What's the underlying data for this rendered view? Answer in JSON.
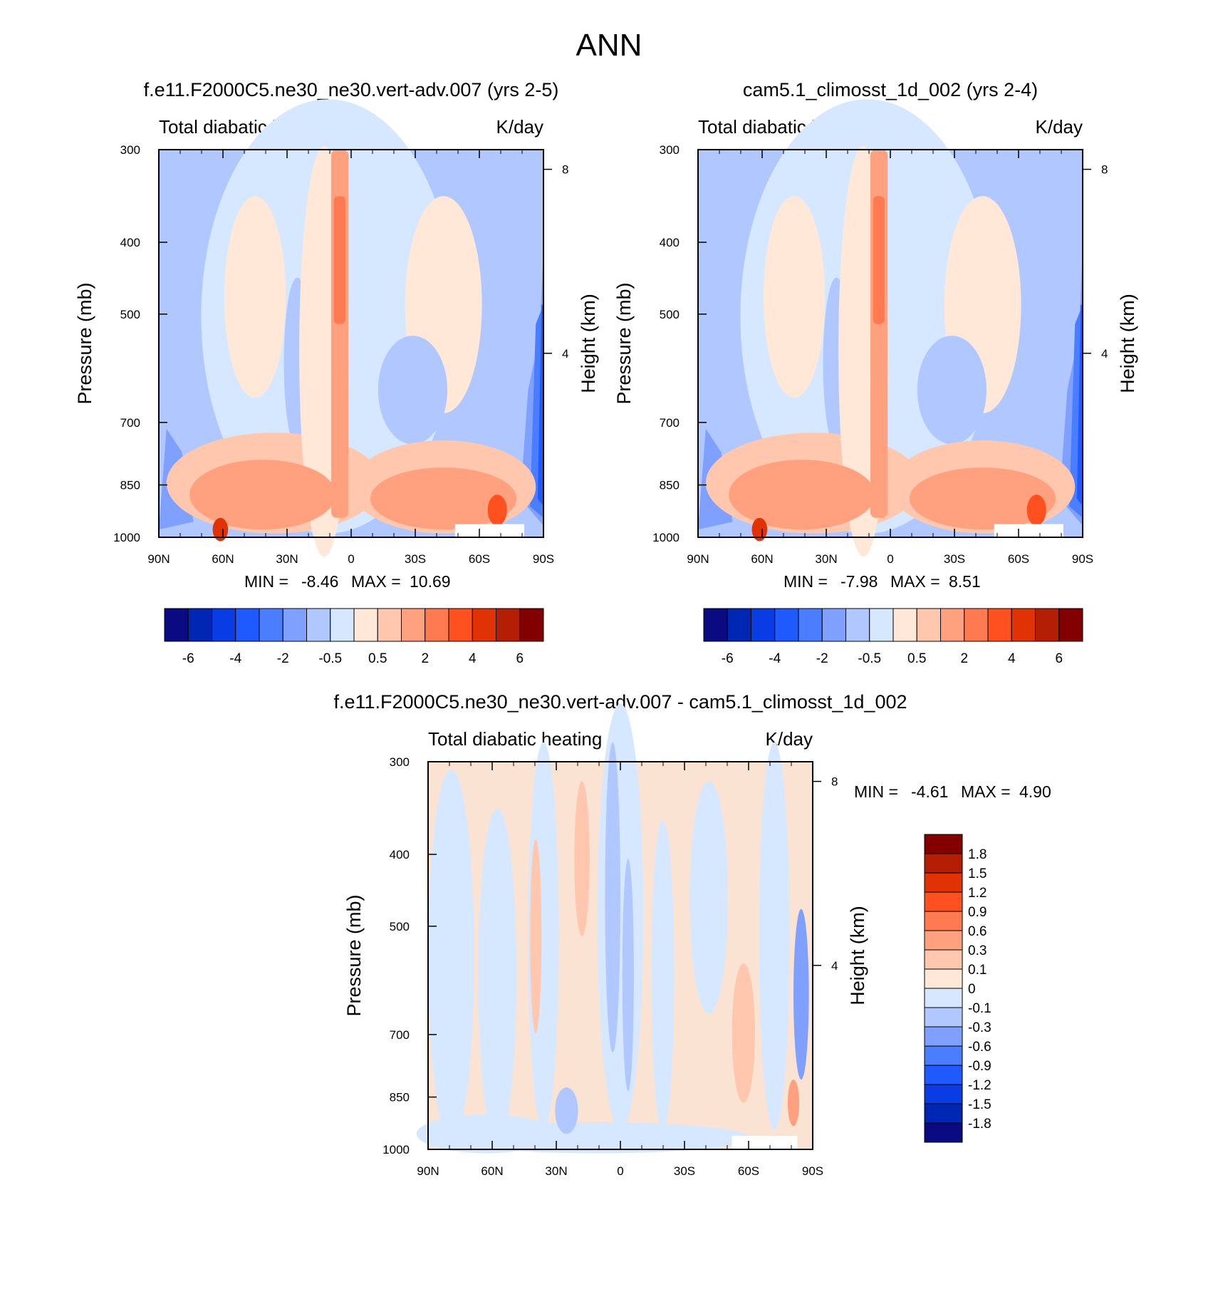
{
  "figure_title": "ANN",
  "chart_data": [
    {
      "type": "heatmap",
      "panel": "model",
      "title": "f.e11.F2000C5.ne30_ne30.vert-adv.007 (yrs 2-5)",
      "left_subtitle": "Total diabatic heating",
      "right_subtitle": "K/day",
      "xlabel": "",
      "ylabel": "Pressure (mb)",
      "y2label": "Height (km)",
      "x_ticks": [
        "90N",
        "60N",
        "30N",
        "0",
        "30S",
        "60S",
        "90S"
      ],
      "y_ticks": [
        "300",
        "400",
        "500",
        "700",
        "850",
        "1000"
      ],
      "y2_ticks": [
        "8",
        "4"
      ],
      "min_label": "MIN =",
      "min_value": "-8.46",
      "max_label": "MAX =",
      "max_value": "10.69",
      "colorbar_labels": [
        "-6",
        "-4",
        "-2",
        "-0.5",
        "0.5",
        "2",
        "4",
        "6"
      ],
      "colorbar_levels": [
        -8,
        -6,
        -5,
        -4,
        -3,
        -2,
        -1,
        -0.5,
        0,
        0.5,
        1,
        2,
        3,
        4,
        5,
        6,
        8
      ]
    },
    {
      "type": "heatmap",
      "panel": "control",
      "title": "cam5.1_climosst_1d_002 (yrs 2-4)",
      "left_subtitle": "Total diabatic heating",
      "right_subtitle": "K/day",
      "xlabel": "",
      "ylabel": "Pressure (mb)",
      "y2label": "Height (km)",
      "x_ticks": [
        "90N",
        "60N",
        "30N",
        "0",
        "30S",
        "60S",
        "90S"
      ],
      "y_ticks": [
        "300",
        "400",
        "500",
        "700",
        "850",
        "1000"
      ],
      "y2_ticks": [
        "8",
        "4"
      ],
      "min_label": "MIN =",
      "min_value": "-7.98",
      "max_label": "MAX =",
      "max_value": "8.51",
      "colorbar_labels": [
        "-6",
        "-4",
        "-2",
        "-0.5",
        "0.5",
        "2",
        "4",
        "6"
      ],
      "colorbar_levels": [
        -8,
        -6,
        -5,
        -4,
        -3,
        -2,
        -1,
        -0.5,
        0,
        0.5,
        1,
        2,
        3,
        4,
        5,
        6,
        8
      ]
    },
    {
      "type": "heatmap",
      "panel": "difference",
      "title": "f.e11.F2000C5.ne30_ne30.vert-adv.007 - cam5.1_climosst_1d_002",
      "left_subtitle": "Total diabatic heating",
      "right_subtitle": "K/day",
      "xlabel": "",
      "ylabel": "Pressure (mb)",
      "y2label": "Height (km)",
      "x_ticks": [
        "90N",
        "60N",
        "30N",
        "0",
        "30S",
        "60S",
        "90S"
      ],
      "y_ticks": [
        "300",
        "400",
        "500",
        "700",
        "850",
        "1000"
      ],
      "y2_ticks": [
        "8",
        "4"
      ],
      "min_label": "MIN =",
      "min_value": "-4.61",
      "max_label": "MAX =",
      "max_value": "4.90",
      "colorbar_labels": [
        "1.8",
        "1.5",
        "1.2",
        "0.9",
        "0.6",
        "0.3",
        "0.1",
        "0",
        "-0.1",
        "-0.3",
        "-0.6",
        "-0.9",
        "-1.2",
        "-1.5",
        "-1.8"
      ],
      "colorbar_levels": [
        -1.8,
        -1.5,
        -1.2,
        -0.9,
        -0.6,
        -0.3,
        -0.1,
        0,
        0.1,
        0.3,
        0.6,
        0.9,
        1.2,
        1.5,
        1.8
      ]
    }
  ],
  "colors": {
    "scale16": [
      "#0a0a82",
      "#0026b4",
      "#0a3ce6",
      "#1e5aff",
      "#4b7dff",
      "#7fa0ff",
      "#b0c8ff",
      "#d6e8ff",
      "#ffe8d8",
      "#ffc8ae",
      "#ffa07e",
      "#ff7a50",
      "#ff5020",
      "#e03205",
      "#b41e05",
      "#820000"
    ],
    "background": "#ffffff",
    "axis": "#000000",
    "missing": "#ffffff"
  }
}
